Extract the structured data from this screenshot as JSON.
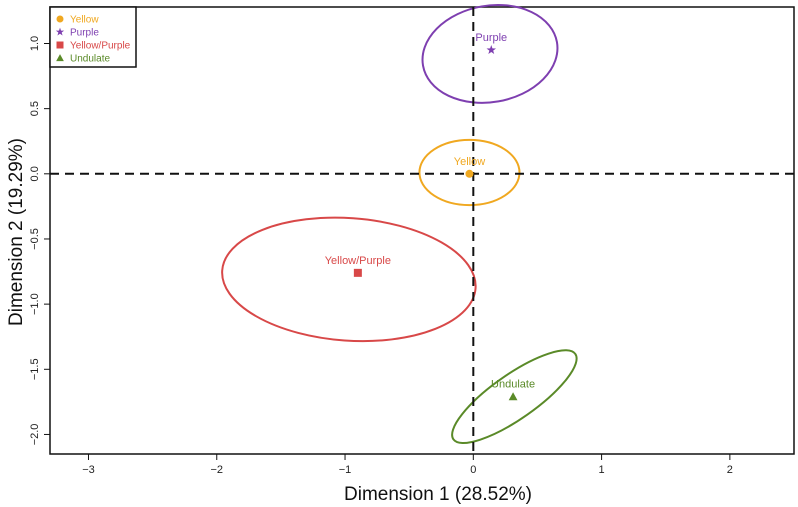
{
  "chart_data": {
    "type": "scatter",
    "title": "",
    "xlabel": "Dimension 1 (28.52%)",
    "ylabel": "Dimension 2 (19.29%)",
    "xlim": [
      -3.3,
      2.5
    ],
    "ylim": [
      -2.15,
      1.28
    ],
    "xticks": [
      -3,
      -2,
      -1,
      0,
      1,
      2
    ],
    "yticks": [
      1.0,
      0.5,
      0.0,
      -0.5,
      -1.0,
      -1.5,
      -2.0
    ],
    "ytick_labels": [
      "1.0",
      "0.5",
      "0.0",
      "−0.5",
      "−1.0",
      "−1.5",
      "−2.0"
    ],
    "xtick_labels": [
      "−3",
      "−2",
      "−1",
      "0",
      "1",
      "2"
    ],
    "reference_lines": {
      "x": 0,
      "y": 0,
      "style": "dashed"
    },
    "grid": false,
    "legend": {
      "position": "top-left"
    },
    "series": [
      {
        "name": "Yellow",
        "marker": "circle",
        "color": "#F0A820",
        "point": {
          "x": -0.03,
          "y": 0.0
        },
        "ellipse": {
          "cx": -0.03,
          "cy": 0.01,
          "rx": 0.39,
          "ry": 0.25,
          "angle": 0
        }
      },
      {
        "name": "Purple",
        "marker": "star",
        "color": "#7E3FB0",
        "point": {
          "x": 0.14,
          "y": 0.95
        },
        "ellipse": {
          "cx": 0.13,
          "cy": 0.92,
          "rx": 0.53,
          "ry": 0.37,
          "angle": -10
        }
      },
      {
        "name": "Yellow/Purple",
        "marker": "square",
        "color": "#D84848",
        "point": {
          "x": -0.9,
          "y": -0.76
        },
        "ellipse": {
          "cx": -0.97,
          "cy": -0.81,
          "rx": 0.99,
          "ry": 0.47,
          "angle": 4
        }
      },
      {
        "name": "Undulate",
        "marker": "triangle",
        "color": "#5A8A28",
        "point": {
          "x": 0.31,
          "y": -1.71
        },
        "ellipse": {
          "cx": 0.32,
          "cy": -1.71,
          "rx": 0.58,
          "ry": 0.17,
          "angle": -35
        }
      }
    ]
  }
}
